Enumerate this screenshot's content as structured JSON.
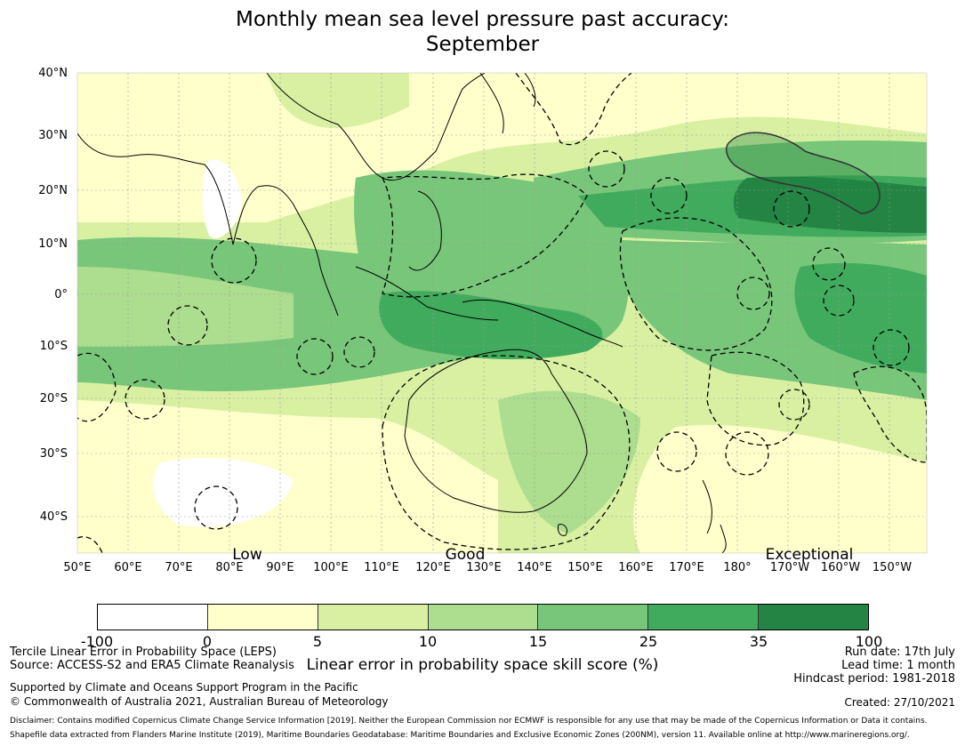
{
  "title_line1": "Monthly mean sea level pressure past accuracy:",
  "title_line2": "September",
  "lat_labels": [
    "40°N",
    "30°N",
    "20°N",
    "10°N",
    "0°",
    "10°S",
    "20°S",
    "30°S",
    "40°S"
  ],
  "lon_labels": [
    "50°E",
    "60°E",
    "70°E",
    "80°E",
    "90°E",
    "100°E",
    "110°E",
    "120°E",
    "130°E",
    "140°E",
    "150°E",
    "160°E",
    "170°E",
    "180°",
    "170°W",
    "160°W",
    "150°W"
  ],
  "categories": [
    "Low",
    "Good",
    "Exceptional"
  ],
  "colorbar": {
    "ticks": [
      "-100",
      "0",
      "5",
      "10",
      "15",
      "25",
      "35",
      "100"
    ],
    "colors": [
      "#ffffff",
      "#ffffcc",
      "#d9f0a3",
      "#addd8e",
      "#78c679",
      "#41ab5d",
      "#238443"
    ],
    "label": "Linear error in probability space skill score (%)"
  },
  "footer": {
    "left1": "Tercile Linear Error in Probability Space (LEPS)",
    "left2": "Source: ACCESS-S2 and ERA5 Climate Reanalysis",
    "left3": "Supported by Climate and Oceans Support Program in the Pacific",
    "left4": "© Commonwealth of Australia 2021, Australian Bureau of Meteorology",
    "run_date": "Run date: 17th July",
    "lead_time": "Lead time: 1 month",
    "hindcast": "Hindcast period: 1981-2018",
    "created": "Created: 27/10/2021",
    "disclaimer1": "Disclaimer: Contains modified Copernicus Climate Change Service Information [2019]. Neither the European Commission nor ECMWF is responsible for any use that may be made of the Copernicus Information or Data it contains.",
    "disclaimer2": "Shapefile data extracted from Flanders Marine Institute (2019), Maritime Boundaries Geodatabase: Maritime Boundaries and Exclusive Economic Zones (200NM), version 11. Available online at http://www.marineregions.org/."
  }
}
